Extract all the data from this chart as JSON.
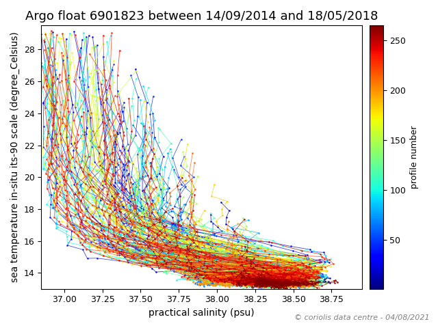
{
  "title": "Argo float 6901823 between 14/09/2014 and 18/05/2018",
  "xlabel": "practical salinity (psu)",
  "ylabel": "sea temperature in-situ its-90 scale (degree_Celsius)",
  "colorbar_label": "profile number",
  "copyright_text": "© coriolis data centre - 04/08/2021",
  "xlim": [
    36.85,
    38.95
  ],
  "ylim": [
    13.0,
    29.5
  ],
  "xticks": [
    37.0,
    37.25,
    37.5,
    37.75,
    38.0,
    38.25,
    38.5,
    38.75
  ],
  "yticks": [
    14,
    16,
    18,
    20,
    22,
    24,
    26,
    28
  ],
  "cmap": "jet",
  "n_profiles": 265,
  "vmin": 1,
  "vmax": 265,
  "colorbar_ticks": [
    50,
    100,
    150,
    200,
    250
  ],
  "title_fontsize": 13,
  "label_fontsize": 10,
  "tick_fontsize": 9,
  "colorbar_tick_fontsize": 9,
  "copyright_fontsize": 8,
  "figsize": [
    6.4,
    4.8
  ],
  "dpi": 100
}
